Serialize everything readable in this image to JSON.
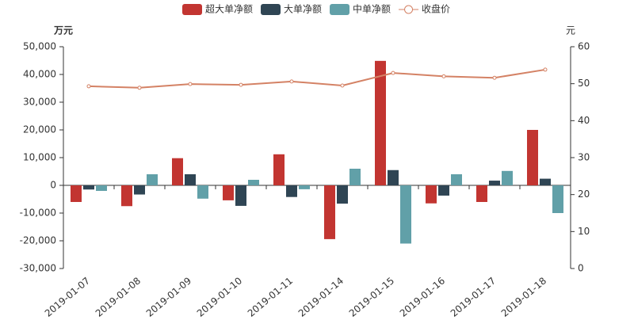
{
  "chart_data": {
    "type": "bar",
    "y_axis_label": "万元",
    "y2_axis_label": "元",
    "categories": [
      "2019-01-07",
      "2019-01-08",
      "2019-01-09",
      "2019-01-10",
      "2019-01-11",
      "2019-01-14",
      "2019-01-15",
      "2019-01-16",
      "2019-01-17",
      "2019-01-18"
    ],
    "series": [
      {
        "name": "超大单净额",
        "color": "#c23531",
        "values": [
          -6000,
          -7500,
          9800,
          -5400,
          11200,
          -19400,
          44900,
          -6500,
          -6000,
          20000
        ]
      },
      {
        "name": "大单净额",
        "color": "#2f4554",
        "values": [
          -1500,
          -3300,
          4000,
          -7400,
          -4200,
          -6600,
          5500,
          -3700,
          1700,
          2400
        ]
      },
      {
        "name": "中单净额",
        "color": "#61a0a8",
        "values": [
          -2000,
          4000,
          -4800,
          2000,
          -1400,
          6000,
          -21000,
          4000,
          5200,
          -10000
        ]
      },
      {
        "name": "收盘价",
        "color": "#d48265",
        "type": "line",
        "axis": "y2",
        "values": [
          49.3,
          48.9,
          49.9,
          49.7,
          50.6,
          49.5,
          52.9,
          52.0,
          51.6,
          53.8
        ]
      }
    ],
    "ylim": [
      -30000,
      50000
    ],
    "yticks": [
      {
        "value": -30000,
        "label": "-30,000"
      },
      {
        "value": -20000,
        "label": "-20,000"
      },
      {
        "value": -10000,
        "label": "-10,000"
      },
      0,
      {
        "value": 10000,
        "label": "10,000"
      },
      {
        "value": 20000,
        "label": "20,000"
      },
      {
        "value": 30000,
        "label": "30,000"
      },
      {
        "value": 40000,
        "label": "40,000"
      },
      {
        "value": 50000,
        "label": "50,000"
      }
    ],
    "y2lim": [
      0,
      60
    ],
    "y2ticks": [
      0,
      10,
      20,
      30,
      40,
      50,
      60
    ],
    "grid": false,
    "legend": "top"
  }
}
